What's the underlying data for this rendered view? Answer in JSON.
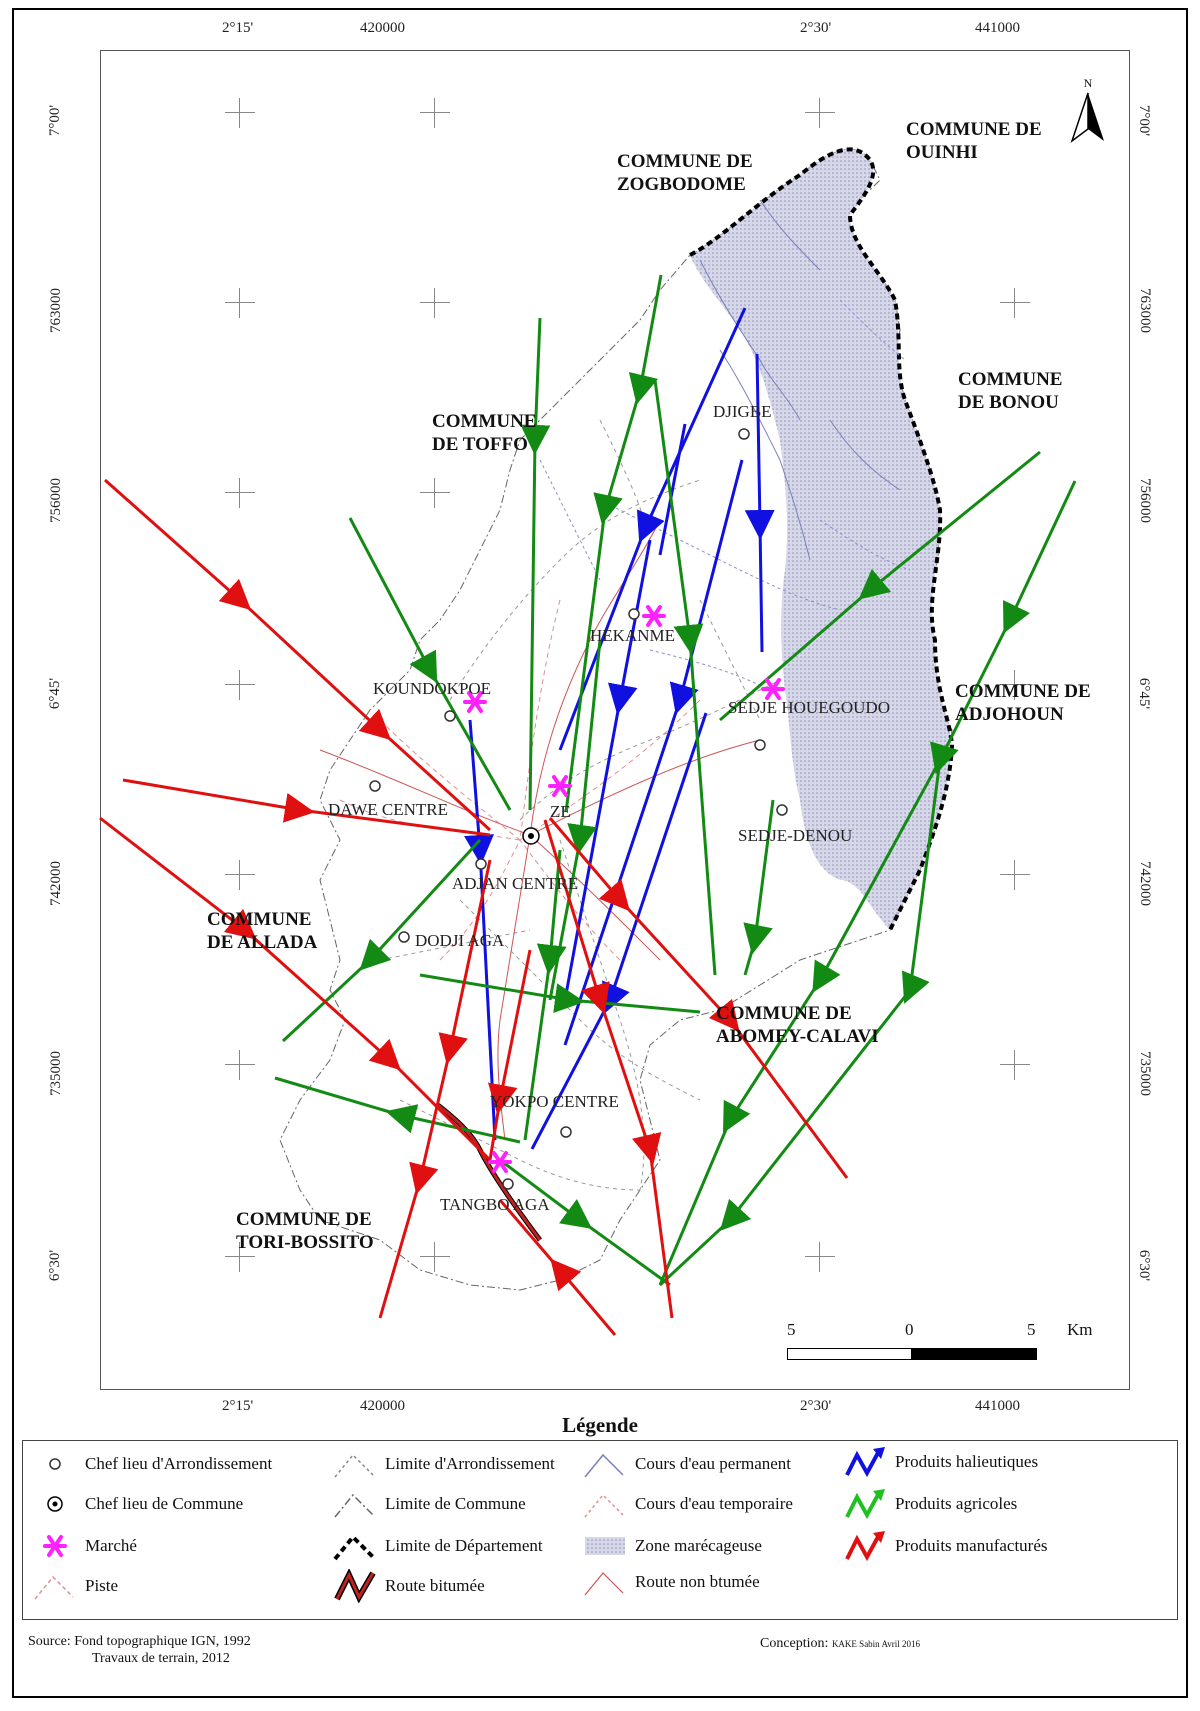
{
  "map": {
    "top_coords": [
      "2°15'",
      "420000",
      "2°30'",
      "441000"
    ],
    "bottom_coords": [
      "2°15'",
      "420000",
      "2°30'",
      "441000"
    ],
    "left_coords": [
      "7°00'",
      "763000",
      "756000",
      "6°45'",
      "742000",
      "735000",
      "6°30'"
    ],
    "right_coords": [
      "7°00'",
      "763000",
      "756000",
      "6°45'",
      "742000",
      "735000",
      "6°30'"
    ],
    "communes": [
      "COMMUNE DE ZOGBODOME",
      "COMMUNE DE OUINHI",
      "COMMUNE DE TOFFO",
      "COMMUNE DE BONOU",
      "COMMUNE DE ADJOHOUN",
      "COMMUNE DE ALLADA",
      "COMMUNE DE ABOMEY-CALAVI",
      "COMMUNE DE TORI-BOSSITO"
    ],
    "places": [
      "DJIGBE",
      "HEKANME",
      "KOUNDOKPOE",
      "SEDJE HOUEGOUDO",
      "DAWE CENTRE",
      "ZE",
      "SEDJE-DENOU",
      "ADJAN CENTRE",
      "DODJI AGA",
      "YOKPO CENTRE",
      "TANGBO AGA"
    ],
    "north_label": "N",
    "scale": {
      "labels": [
        "5",
        "0",
        "5"
      ],
      "unit": "Km"
    },
    "colors": {
      "halieutiques": "#1010e0",
      "agricoles": "#138a13",
      "manufactures": "#e01010",
      "marche": "#ff22ff",
      "departement": "#000000",
      "marais": "#c9cbe0"
    }
  },
  "legend": {
    "title": "Légende",
    "items": [
      "Chef lieu d'Arrondissement",
      "Chef lieu de Commune",
      "Marché",
      "Piste",
      "Limite d'Arrondissement",
      "Limite de Commune",
      "Limite de Département",
      "Route bitumée",
      "Cours d'eau permanent",
      "Cours d'eau temporaire",
      "Zone marécageuse",
      "Route non btumée",
      "Produits halieutiques",
      "Produits agricoles",
      "Produits manufacturés"
    ]
  },
  "footer": {
    "source_line1": "Source: Fond topographique IGN, 1992",
    "source_line2": "Travaux de terrain, 2012",
    "conception_label": "Conception:",
    "conception_author": "KAKE Sabin Avril 2016"
  }
}
